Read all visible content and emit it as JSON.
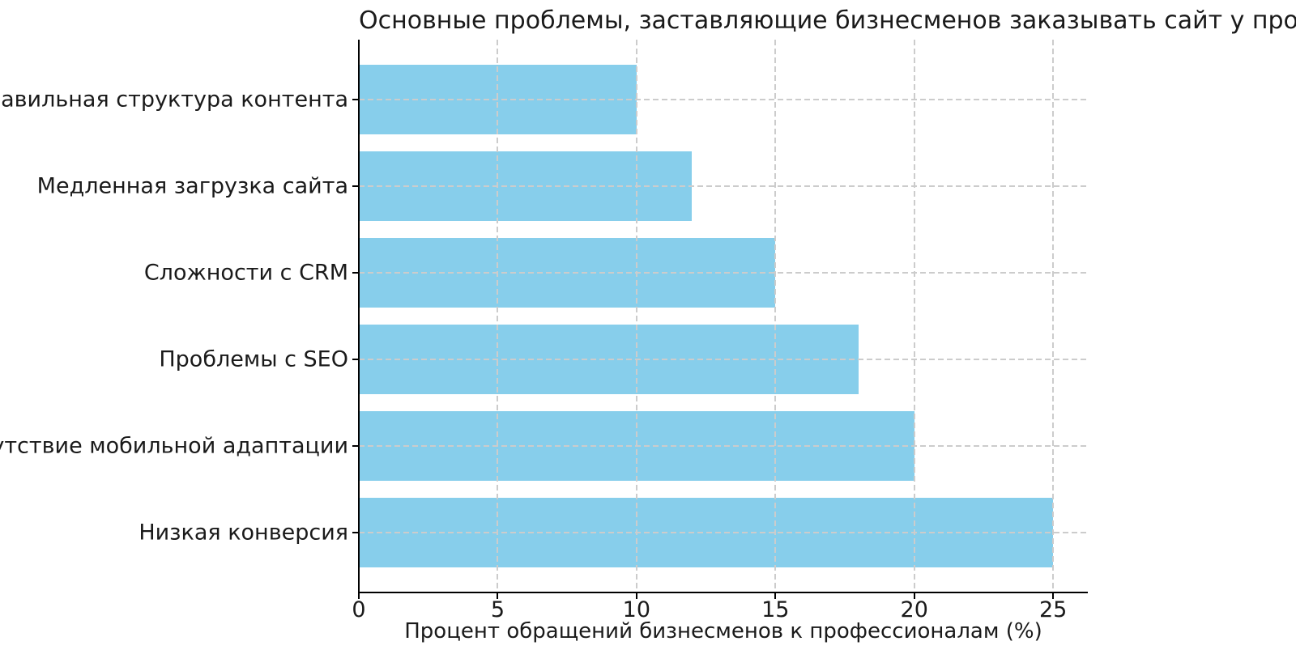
{
  "chart_data": {
    "type": "bar",
    "orientation": "horizontal",
    "title": "Основные проблемы, заставляющие бизнесменов заказывать сайт у профессионалов",
    "xlabel": "Процент обращений бизнесменов к профессионалам (%)",
    "ylabel": "",
    "categories": [
      "Неправильная структура контента",
      "Медленная загрузка сайта",
      "Сложности с CRM",
      "Проблемы с SEO",
      "Отсутствие мобильной адаптации",
      "Низкая конверсия"
    ],
    "values": [
      10,
      12,
      15,
      18,
      20,
      25
    ],
    "xticks": [
      0,
      5,
      10,
      15,
      20,
      25
    ],
    "xlim": [
      0,
      26.25
    ],
    "grid": true,
    "grid_style": "dashed",
    "grid_over_bars": true,
    "legend": "none",
    "bar_color": "#87CEEB",
    "grid_color": "#cccccc",
    "axis_color": "#000000",
    "text_color": "#1a1a1a",
    "background_color": "#ffffff"
  }
}
